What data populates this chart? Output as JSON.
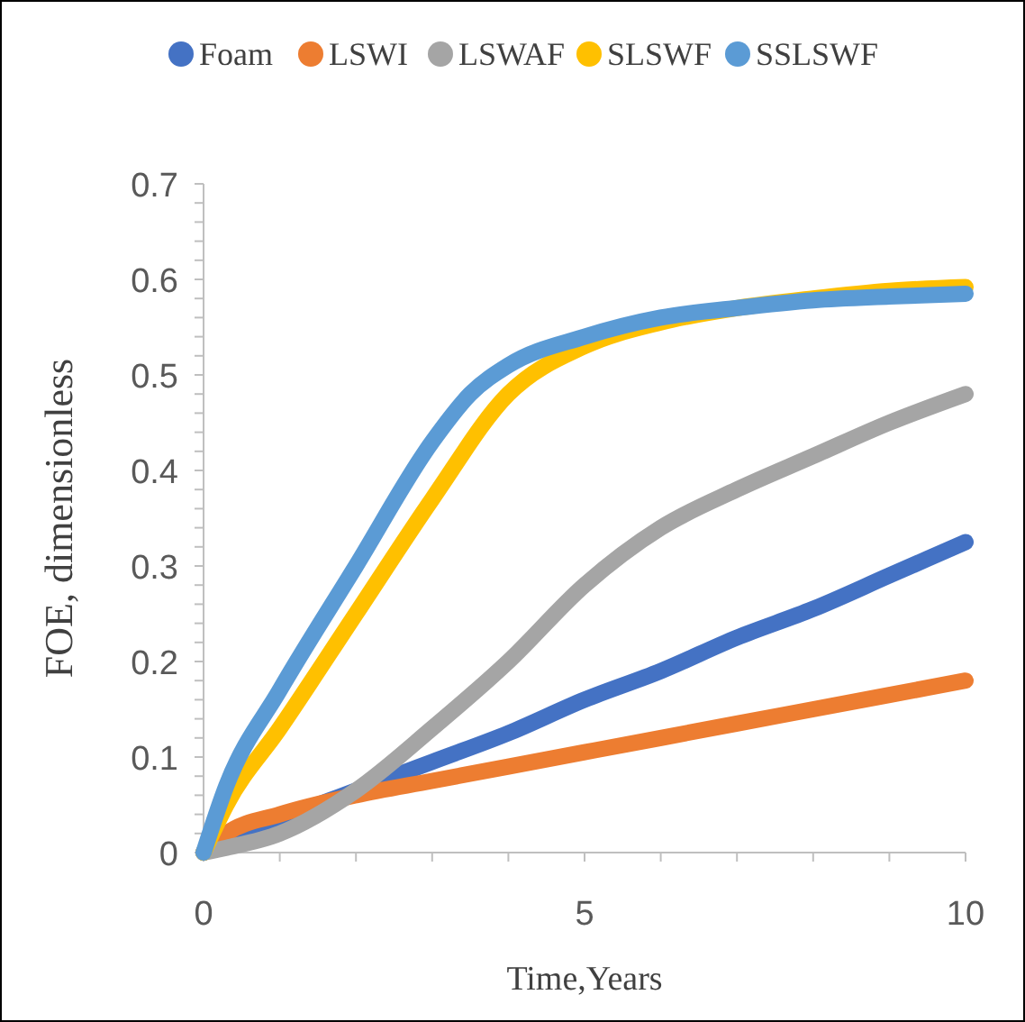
{
  "chart_data": {
    "type": "line",
    "xlabel": "Time,Years",
    "ylabel": "FOE, dimensionless",
    "xlim": [
      0,
      10
    ],
    "ylim": [
      0,
      0.7
    ],
    "xticks": [
      0,
      {
        "value": 1,
        "label": null
      },
      {
        "value": 2,
        "label": null
      },
      {
        "value": 3,
        "label": null
      },
      {
        "value": 4,
        "label": null
      },
      5,
      {
        "value": 6,
        "label": null
      },
      {
        "value": 7,
        "label": null
      },
      {
        "value": 8,
        "label": null
      },
      {
        "value": 9,
        "label": null
      },
      10
    ],
    "yticks": [
      0,
      {
        "value": 0.02,
        "label": null
      },
      {
        "value": 0.04,
        "label": null
      },
      {
        "value": 0.06,
        "label": null
      },
      {
        "value": 0.08,
        "label": null
      },
      0.1,
      {
        "value": 0.12,
        "label": null
      },
      {
        "value": 0.14,
        "label": null
      },
      {
        "value": 0.16,
        "label": null
      },
      {
        "value": 0.18,
        "label": null
      },
      0.2,
      {
        "value": 0.22,
        "label": null
      },
      {
        "value": 0.24,
        "label": null
      },
      {
        "value": 0.26,
        "label": null
      },
      {
        "value": 0.28,
        "label": null
      },
      0.3,
      {
        "value": 0.32,
        "label": null
      },
      {
        "value": 0.34,
        "label": null
      },
      {
        "value": 0.36,
        "label": null
      },
      {
        "value": 0.38,
        "label": null
      },
      0.4,
      {
        "value": 0.42,
        "label": null
      },
      {
        "value": 0.44,
        "label": null
      },
      {
        "value": 0.46,
        "label": null
      },
      {
        "value": 0.48,
        "label": null
      },
      0.5,
      {
        "value": 0.52,
        "label": null
      },
      {
        "value": 0.54,
        "label": null
      },
      {
        "value": 0.56,
        "label": null
      },
      {
        "value": 0.58,
        "label": null
      },
      0.6,
      {
        "value": 0.62,
        "label": null
      },
      {
        "value": 0.64,
        "label": null
      },
      {
        "value": 0.66,
        "label": null
      },
      {
        "value": 0.68,
        "label": null
      },
      0.7
    ],
    "grid": false,
    "legend": "top",
    "marker": "none",
    "line_style": "solid",
    "x": [
      0,
      0.3,
      1,
      2,
      3,
      4,
      5,
      6,
      7,
      8,
      9,
      10
    ],
    "series": [
      {
        "name": "Foam",
        "color": "#4472c4",
        "values": [
          0,
          0.015,
          0.035,
          0.065,
          0.095,
          0.125,
          0.16,
          0.19,
          0.225,
          0.255,
          0.29,
          0.325
        ]
      },
      {
        "name": "LSWI",
        "color": "#ed7d31",
        "values": [
          0,
          0.02,
          0.04,
          0.06,
          0.075,
          0.09,
          0.105,
          0.12,
          0.135,
          0.15,
          0.165,
          0.18
        ]
      },
      {
        "name": "LSWAF",
        "color": "#a5a5a5",
        "values": [
          0,
          0.005,
          0.02,
          0.065,
          0.13,
          0.2,
          0.28,
          0.34,
          0.38,
          0.415,
          0.45,
          0.48
        ]
      },
      {
        "name": "SLSWF",
        "color": "#ffc000",
        "values": [
          0,
          0.05,
          0.13,
          0.25,
          0.37,
          0.48,
          0.53,
          0.555,
          0.57,
          0.58,
          0.588,
          0.592
        ]
      },
      {
        "name": "SSLSWF",
        "color": "#5b9bd5",
        "x": [
          0,
          0.3,
          1,
          2,
          3,
          3.5,
          4,
          5,
          6,
          7,
          8,
          9,
          10
        ],
        "values": [
          0,
          0.07,
          0.17,
          0.3,
          0.43,
          0.48,
          0.51,
          0.54,
          0.56,
          0.57,
          0.578,
          0.582,
          0.585
        ]
      }
    ]
  }
}
